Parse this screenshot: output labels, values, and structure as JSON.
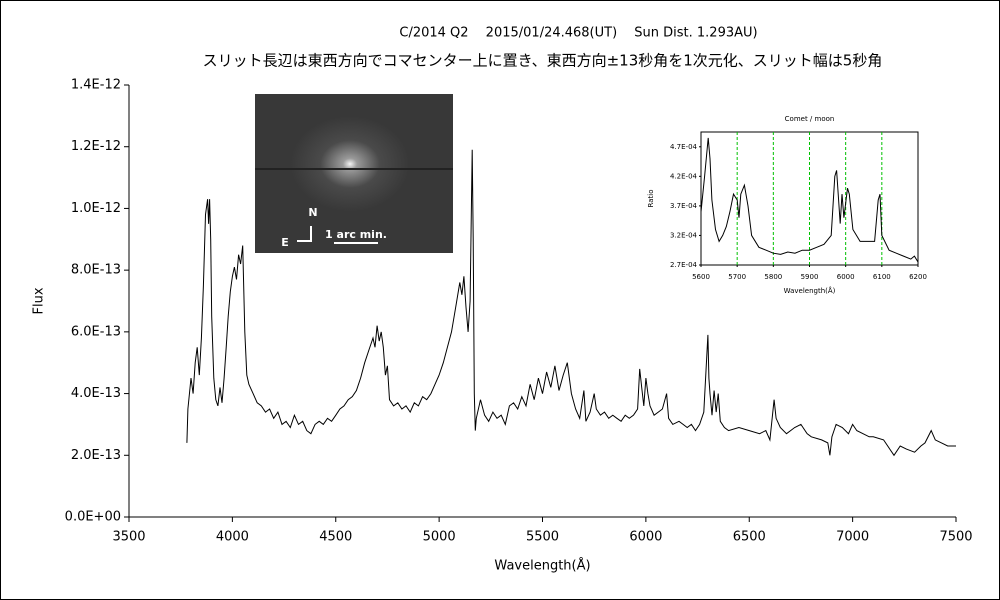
{
  "chart_data": [
    {
      "type": "line",
      "title": "C/2014 Q2　 2015/01/24.468(UT)　 Sun Dist. 1.293AU)",
      "subtitle": "スリット長辺は東西方向でコマセンター上に置き、東西方向±13秒角を1次元化、スリット幅は5秒角",
      "xlabel": "Wavelength(Å)",
      "ylabel": "Flux",
      "color": "#000000",
      "xlim": [
        3500,
        7500
      ],
      "ylim": [
        0,
        1.4e-12
      ],
      "xticks": [
        3500,
        4000,
        4500,
        5000,
        5500,
        6000,
        6500,
        7000,
        7500
      ],
      "yticks": [
        {
          "value": 0,
          "label": "0.0E+00"
        },
        {
          "value": 2e-13,
          "label": "2.0E-13"
        },
        {
          "value": 4e-13,
          "label": "4.0E-13"
        },
        {
          "value": 6e-13,
          "label": "6.0E-13"
        },
        {
          "value": 8e-13,
          "label": "8.0E-13"
        },
        {
          "value": 1e-12,
          "label": "1.0E-12"
        },
        {
          "value": 1.2e-12,
          "label": "1.2E-12"
        },
        {
          "value": 1.4e-12,
          "label": "1.4E-12"
        }
      ],
      "grid": false,
      "x": [
        3780,
        3785,
        3800,
        3810,
        3820,
        3830,
        3840,
        3850,
        3860,
        3870,
        3880,
        3885,
        3890,
        3895,
        3900,
        3910,
        3920,
        3930,
        3940,
        3950,
        3960,
        3970,
        3980,
        3990,
        4000,
        4010,
        4020,
        4030,
        4040,
        4050,
        4060,
        4070,
        4080,
        4100,
        4120,
        4140,
        4160,
        4180,
        4200,
        4220,
        4240,
        4260,
        4280,
        4300,
        4320,
        4340,
        4360,
        4380,
        4400,
        4420,
        4440,
        4460,
        4480,
        4500,
        4520,
        4540,
        4560,
        4580,
        4600,
        4620,
        4640,
        4660,
        4680,
        4690,
        4700,
        4710,
        4720,
        4730,
        4740,
        4750,
        4760,
        4780,
        4800,
        4820,
        4840,
        4860,
        4880,
        4900,
        4920,
        4940,
        4960,
        4980,
        5000,
        5020,
        5040,
        5060,
        5080,
        5100,
        5110,
        5120,
        5130,
        5140,
        5150,
        5160,
        5165,
        5170,
        5175,
        5180,
        5200,
        5220,
        5240,
        5260,
        5280,
        5300,
        5320,
        5340,
        5360,
        5380,
        5400,
        5420,
        5440,
        5460,
        5480,
        5500,
        5520,
        5540,
        5560,
        5580,
        5600,
        5620,
        5640,
        5660,
        5680,
        5700,
        5710,
        5730,
        5750,
        5760,
        5780,
        5800,
        5820,
        5840,
        5860,
        5880,
        5900,
        5920,
        5940,
        5960,
        5970,
        5980,
        5990,
        6000,
        6010,
        6020,
        6040,
        6060,
        6080,
        6100,
        6110,
        6130,
        6160,
        6180,
        6200,
        6220,
        6240,
        6260,
        6280,
        6300,
        6305,
        6310,
        6320,
        6330,
        6340,
        6350,
        6360,
        6380,
        6400,
        6450,
        6500,
        6550,
        6580,
        6600,
        6620,
        6630,
        6650,
        6680,
        6700,
        6720,
        6750,
        6780,
        6800,
        6850,
        6880,
        6890,
        6900,
        6920,
        6950,
        6980,
        7000,
        7020,
        7050,
        7080,
        7100,
        7150,
        7180,
        7200,
        7230,
        7260,
        7300,
        7330,
        7350,
        7380,
        7400,
        7430,
        7460,
        7500
      ],
      "values": [
        2.4e-13,
        3.5e-13,
        4.5e-13,
        4e-13,
        5e-13,
        5.5e-13,
        4.6e-13,
        5.8e-13,
        7.5e-13,
        9.8e-13,
        1.03e-12,
        9.5e-13,
        1.03e-12,
        9e-13,
        6.5e-13,
        4.5e-13,
        3.8e-13,
        3.6e-13,
        4.2e-13,
        3.7e-13,
        4.5e-13,
        5.5e-13,
        6.5e-13,
        7.3e-13,
        7.8e-13,
        8.1e-13,
        7.7e-13,
        8.5e-13,
        8.2e-13,
        8.8e-13,
        6e-13,
        4.6e-13,
        4.3e-13,
        4e-13,
        3.7e-13,
        3.6e-13,
        3.4e-13,
        3.5e-13,
        3.2e-13,
        3.4e-13,
        3e-13,
        3.1e-13,
        2.9e-13,
        3.3e-13,
        3e-13,
        3.1e-13,
        2.8e-13,
        2.7e-13,
        3e-13,
        3.1e-13,
        3e-13,
        3.2e-13,
        3.1e-13,
        3.3e-13,
        3.5e-13,
        3.6e-13,
        3.8e-13,
        3.9e-13,
        4.1e-13,
        4.5e-13,
        5e-13,
        5.4e-13,
        5.8e-13,
        5.5e-13,
        6.2e-13,
        5.7e-13,
        6e-13,
        5.5e-13,
        4.6e-13,
        4.9e-13,
        3.8e-13,
        3.6e-13,
        3.7e-13,
        3.5e-13,
        3.6e-13,
        3.4e-13,
        3.7e-13,
        3.6e-13,
        3.9e-13,
        3.8e-13,
        4e-13,
        4.3e-13,
        4.6e-13,
        5e-13,
        5.5e-13,
        6e-13,
        6.8e-13,
        7.6e-13,
        7.2e-13,
        7.8e-13,
        6.8e-13,
        6e-13,
        7e-13,
        1.19e-12,
        9e-13,
        4e-13,
        2.8e-13,
        3.2e-13,
        3.8e-13,
        3.3e-13,
        3.1e-13,
        3.4e-13,
        3.2e-13,
        3.3e-13,
        3e-13,
        3.6e-13,
        3.7e-13,
        3.5e-13,
        3.9e-13,
        3.6e-13,
        4.3e-13,
        3.8e-13,
        4.5e-13,
        4e-13,
        4.7e-13,
        4.2e-13,
        4.9e-13,
        4.1e-13,
        4.6e-13,
        5e-13,
        4e-13,
        3.5e-13,
        3.2e-13,
        4.1e-13,
        3.1e-13,
        3.4e-13,
        4e-13,
        3.5e-13,
        3.3e-13,
        3.4e-13,
        3.2e-13,
        3.3e-13,
        3.2e-13,
        3.1e-13,
        3.3e-13,
        3.2e-13,
        3.3e-13,
        3.5e-13,
        4.8e-13,
        4.2e-13,
        3.6e-13,
        4.5e-13,
        4e-13,
        3.6e-13,
        3.3e-13,
        3.4e-13,
        3.5e-13,
        4e-13,
        3.2e-13,
        3e-13,
        3.1e-13,
        3e-13,
        2.9e-13,
        3e-13,
        2.8e-13,
        3e-13,
        3.4e-13,
        5.9e-13,
        4.5e-13,
        4e-13,
        3.3e-13,
        4.1e-13,
        3.4e-13,
        4e-13,
        3.1e-13,
        2.9e-13,
        2.8e-13,
        2.9e-13,
        2.8e-13,
        2.7e-13,
        2.8e-13,
        2.5e-13,
        3.8e-13,
        3.2e-13,
        2.9e-13,
        2.7e-13,
        2.8e-13,
        2.9e-13,
        3e-13,
        2.7e-13,
        2.6e-13,
        2.5e-13,
        2.4e-13,
        2e-13,
        2.6e-13,
        3e-13,
        2.9e-13,
        2.7e-13,
        3e-13,
        2.8e-13,
        2.7e-13,
        2.6e-13,
        2.6e-13,
        2.5e-13,
        2.2e-13,
        2e-13,
        2.3e-13,
        2.2e-13,
        2.1e-13,
        2.3e-13,
        2.4e-13,
        2.8e-13,
        2.5e-13,
        2.4e-13,
        2.3e-13,
        2.3e-13
      ]
    },
    {
      "type": "line",
      "title": "Comet / moon",
      "xlabel": "Wavelength(Å)",
      "ylabel": "Ratio",
      "color": "#000000",
      "xlim": [
        5600,
        6200
      ],
      "ylim": [
        0.00027,
        0.000495
      ],
      "xticks": [
        5600,
        5700,
        5800,
        5900,
        6000,
        6100,
        6200
      ],
      "yticks": [
        {
          "value": 0.00027,
          "label": "2.7E-04"
        },
        {
          "value": 0.00032,
          "label": "3.2E-04"
        },
        {
          "value": 0.00037,
          "label": "3.7E-04"
        },
        {
          "value": 0.00042,
          "label": "4.2E-04"
        },
        {
          "value": 0.00047,
          "label": "4.7E-04"
        }
      ],
      "grid": true,
      "grid_color": "#00c000",
      "x": [
        5600,
        5610,
        5620,
        5625,
        5630,
        5640,
        5650,
        5660,
        5670,
        5680,
        5690,
        5700,
        5705,
        5710,
        5720,
        5730,
        5740,
        5760,
        5780,
        5800,
        5820,
        5840,
        5860,
        5880,
        5900,
        5920,
        5940,
        5960,
        5970,
        5975,
        5985,
        5990,
        5995,
        6005,
        6010,
        6020,
        6040,
        6060,
        6080,
        6090,
        6095,
        6100,
        6120,
        6140,
        6160,
        6180,
        6190,
        6200
      ],
      "values": [
        0.00036,
        0.00042,
        0.000485,
        0.00045,
        0.00038,
        0.00033,
        0.00031,
        0.00032,
        0.000335,
        0.00036,
        0.00039,
        0.00038,
        0.00035,
        0.00039,
        0.000405,
        0.00037,
        0.00032,
        0.0003,
        0.000295,
        0.00029,
        0.000288,
        0.000292,
        0.00029,
        0.000295,
        0.000295,
        0.0003,
        0.000305,
        0.00032,
        0.00042,
        0.00043,
        0.00034,
        0.00039,
        0.00035,
        0.0004,
        0.00039,
        0.00033,
        0.00031,
        0.00031,
        0.00031,
        0.00038,
        0.00039,
        0.00032,
        0.000295,
        0.00029,
        0.000285,
        0.00028,
        0.000285,
        0.000275
      ]
    }
  ],
  "image": {
    "north_label": "N",
    "east_label": "E",
    "scale_label": "1 arc min."
  }
}
